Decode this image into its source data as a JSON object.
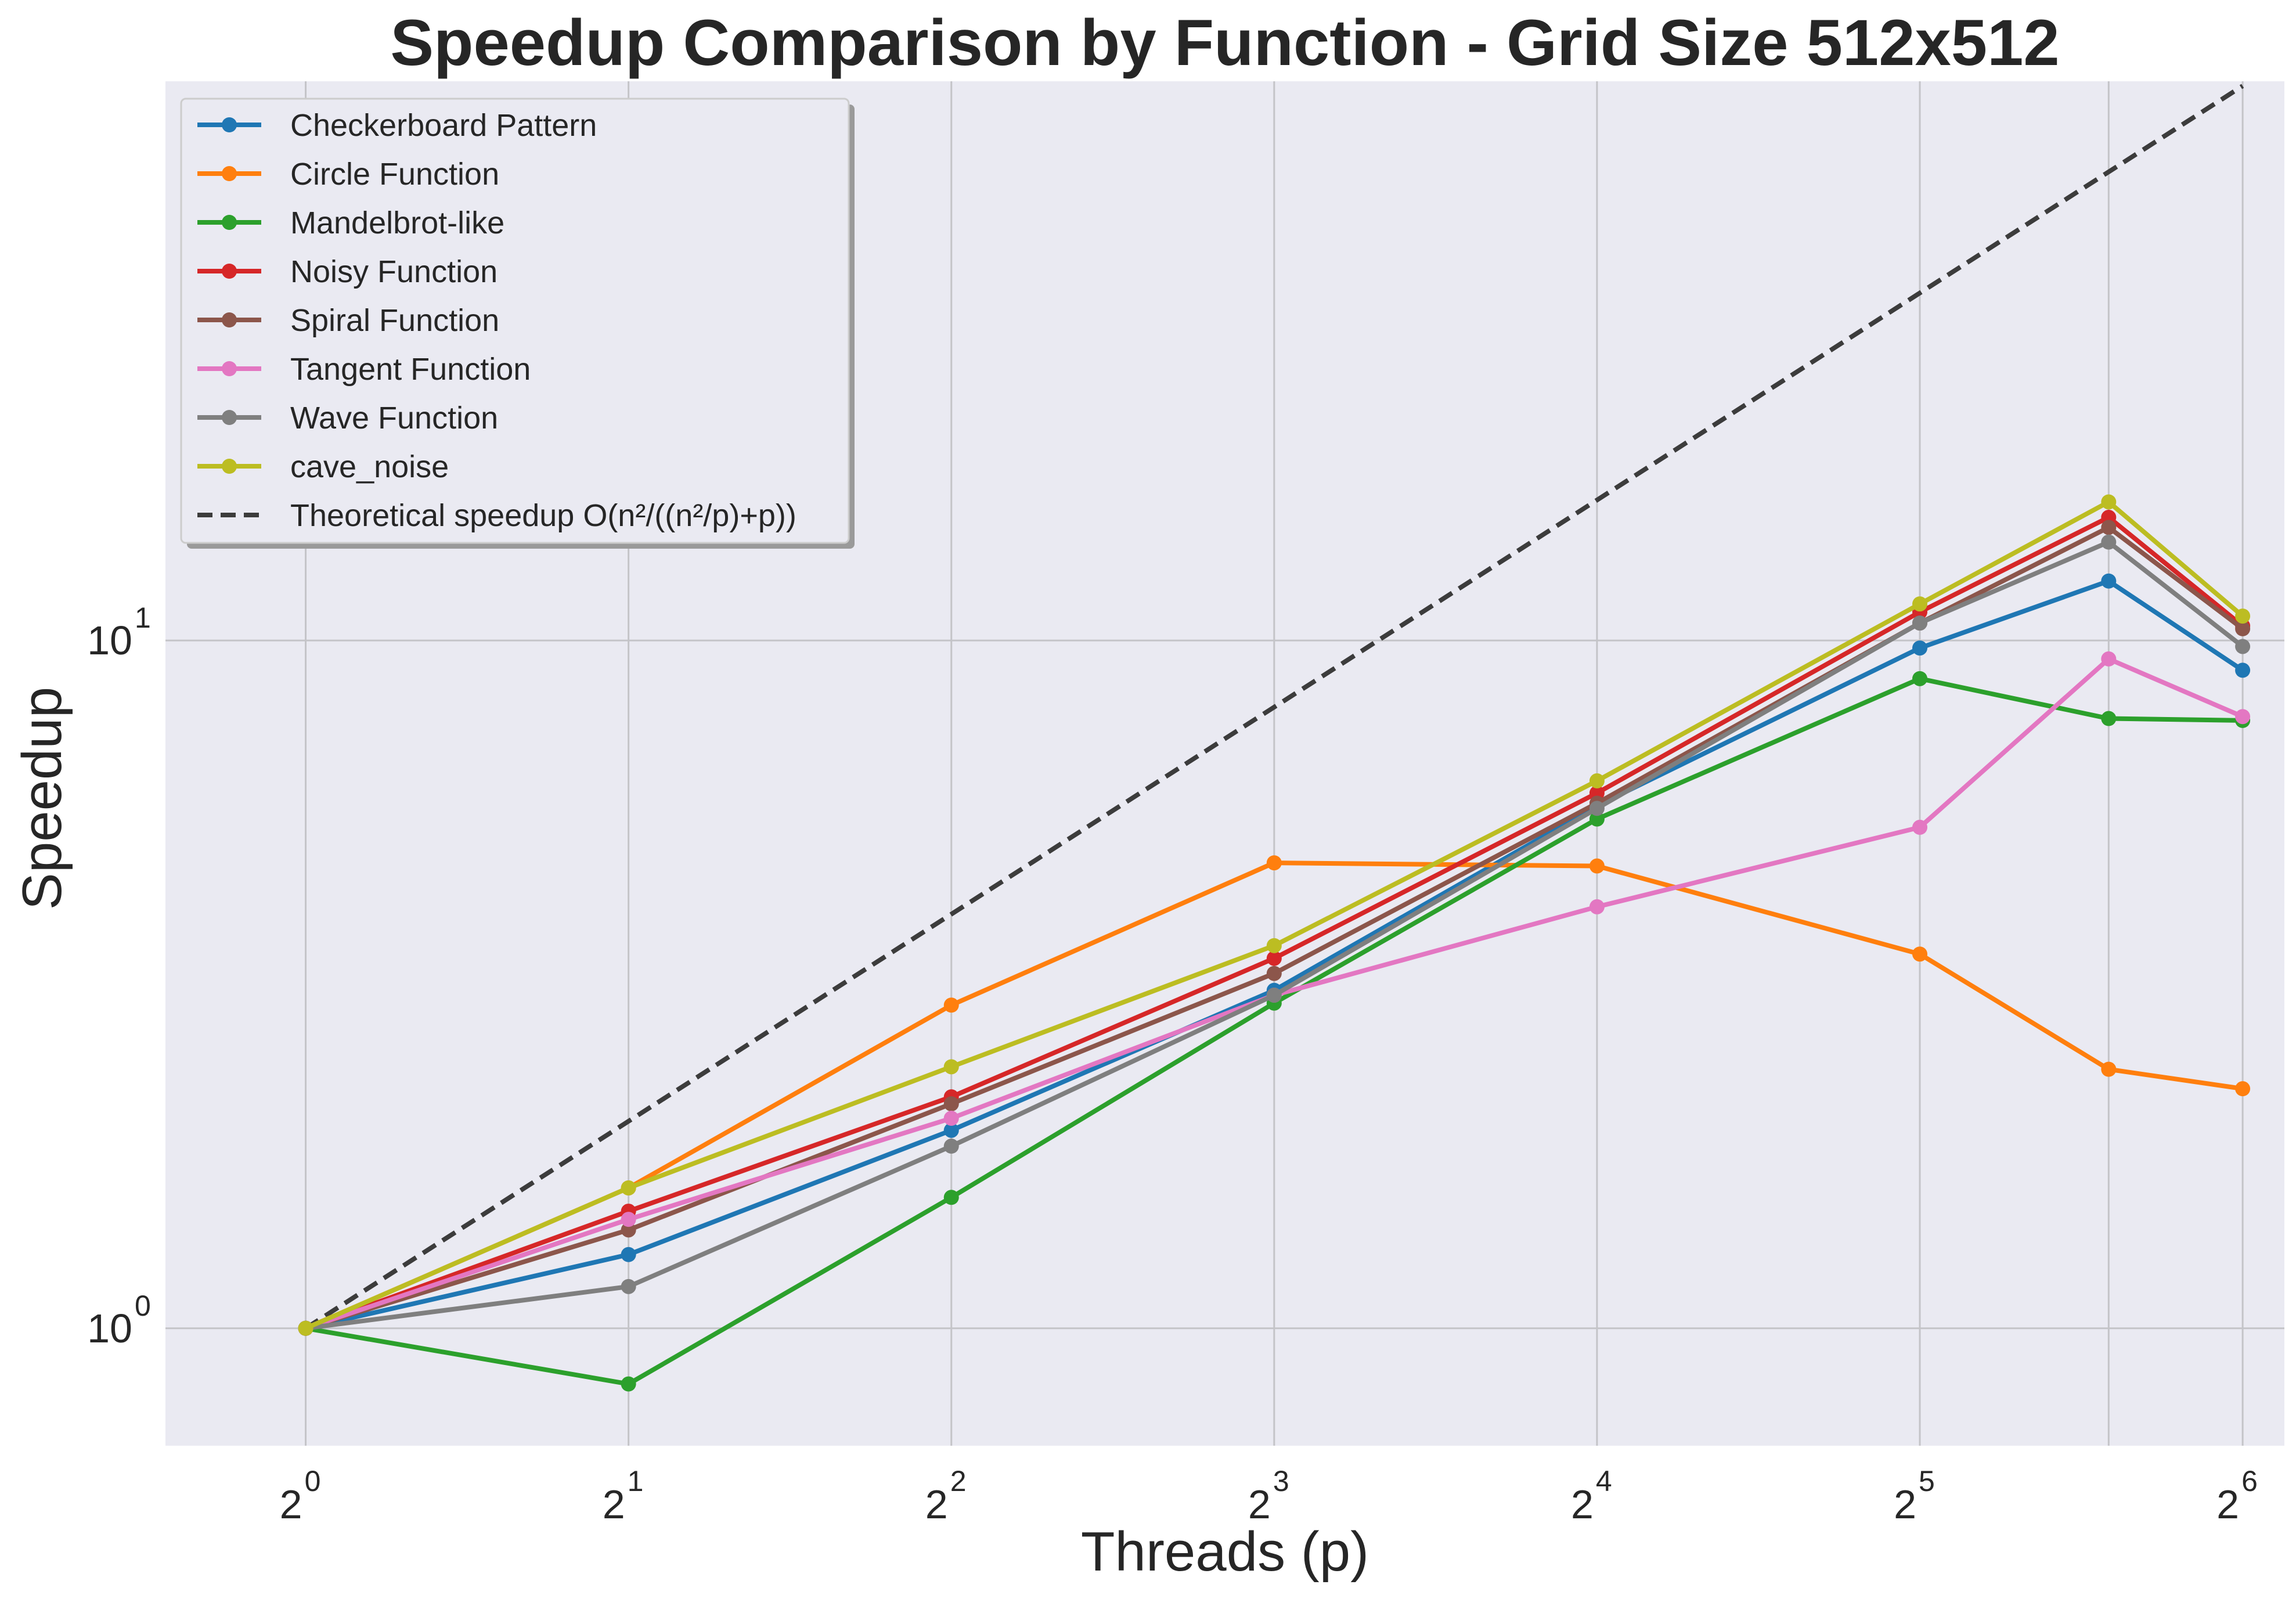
{
  "chart_data": {
    "type": "line",
    "title": "Speedup Comparison by Function - Grid Size 512x512",
    "xlabel": "Threads (p)",
    "ylabel": "Speedup",
    "xscale": "log2",
    "yscale": "log10",
    "xlim": [
      0.74,
      70
    ],
    "ylim": [
      0.675,
      65
    ],
    "grid": true,
    "legend_position": "top-left",
    "x_ticks": [
      {
        "value": 1,
        "base": "2",
        "exp": "0"
      },
      {
        "value": 2,
        "base": "2",
        "exp": "1"
      },
      {
        "value": 4,
        "base": "2",
        "exp": "2"
      },
      {
        "value": 8,
        "base": "2",
        "exp": "3"
      },
      {
        "value": 16,
        "base": "2",
        "exp": "4"
      },
      {
        "value": 32,
        "base": "2",
        "exp": "5"
      },
      {
        "value": 64,
        "base": "2",
        "exp": "6"
      }
    ],
    "extra_x_gridlines": [
      48
    ],
    "y_ticks": [
      {
        "value": 1,
        "base": "10",
        "exp": "0"
      },
      {
        "value": 10,
        "base": "10",
        "exp": "1"
      }
    ],
    "x": [
      1,
      2,
      4,
      8,
      16,
      32,
      48,
      64
    ],
    "series": [
      {
        "name": "Checkerboard Pattern",
        "color": "#1f77b4",
        "values": [
          1.0,
          1.28,
          1.94,
          3.1,
          5.75,
          9.75,
          12.2,
          9.05
        ]
      },
      {
        "name": "Circle Function",
        "color": "#ff7f0e",
        "values": [
          1.0,
          1.6,
          2.95,
          4.75,
          4.7,
          3.5,
          2.38,
          2.23
        ]
      },
      {
        "name": "Mandelbrot-like",
        "color": "#2ca02c",
        "values": [
          1.0,
          0.83,
          1.55,
          2.97,
          5.5,
          8.8,
          7.7,
          7.65
        ]
      },
      {
        "name": "Noisy Function",
        "color": "#d62728",
        "values": [
          1.0,
          1.48,
          2.17,
          3.45,
          6.0,
          11.0,
          15.1,
          10.5
        ]
      },
      {
        "name": "Spiral Function",
        "color": "#8c564b",
        "values": [
          1.0,
          1.39,
          2.12,
          3.28,
          5.8,
          10.6,
          14.6,
          10.4
        ]
      },
      {
        "name": "Tangent Function",
        "color": "#e377c2",
        "values": [
          1.0,
          1.44,
          2.02,
          3.05,
          4.1,
          5.35,
          9.4,
          7.75
        ]
      },
      {
        "name": "Wave Function",
        "color": "#7f7f7f",
        "values": [
          1.0,
          1.15,
          1.84,
          3.05,
          5.7,
          10.6,
          13.9,
          9.8
        ]
      },
      {
        "name": "cave_noise",
        "color": "#bcbd22",
        "values": [
          1.0,
          1.6,
          2.4,
          3.6,
          6.25,
          11.3,
          15.9,
          10.85
        ]
      }
    ],
    "theoretical": {
      "name": "Theoretical speedup O(n²/((n²/p)+p))",
      "color": "#3c3c3c",
      "x": [
        1,
        2,
        4,
        8,
        16,
        32,
        48,
        64
      ],
      "values": [
        1,
        2,
        4,
        8,
        16,
        32,
        48,
        64
      ]
    }
  }
}
